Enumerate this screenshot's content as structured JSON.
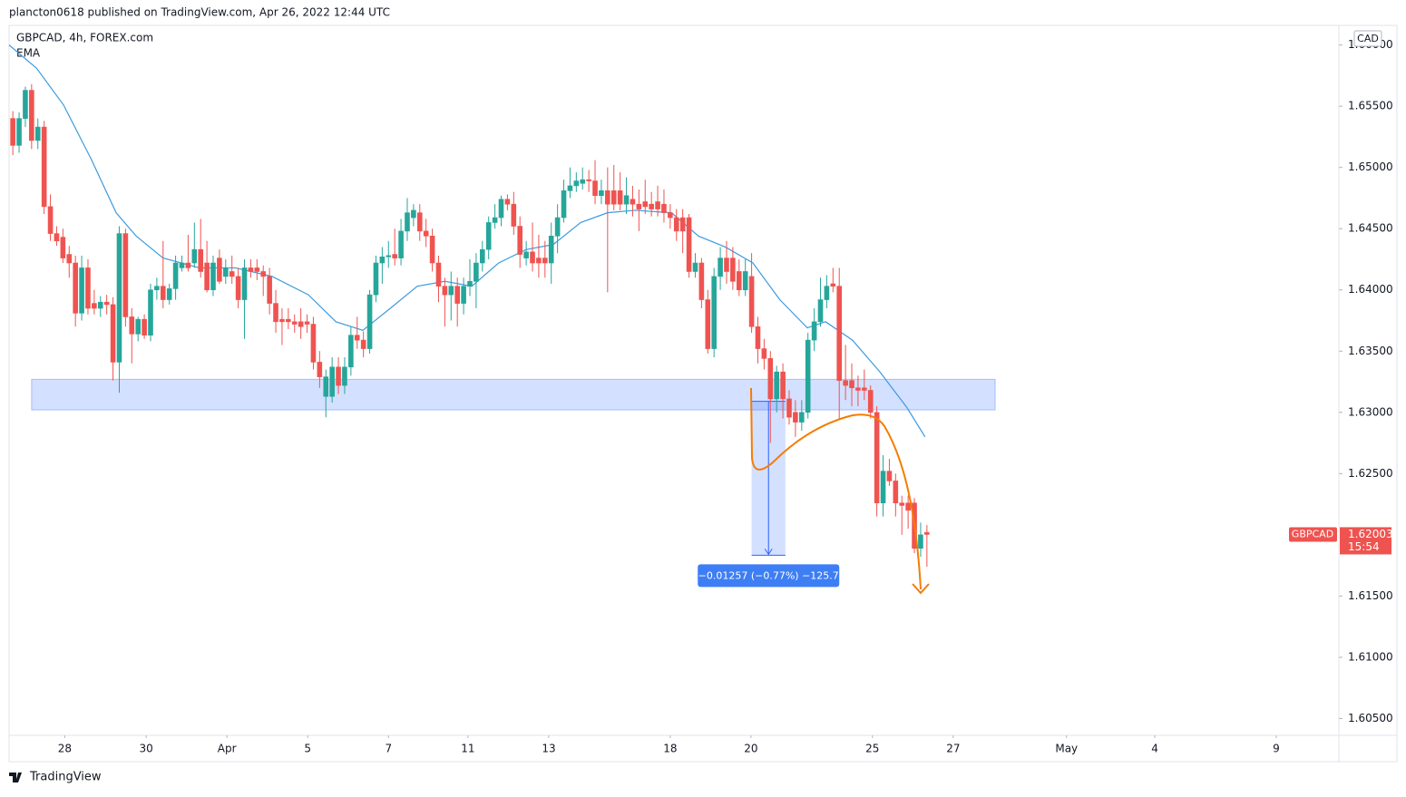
{
  "header": {
    "publisher": "plancton0618 published on TradingView.com, Apr 26, 2022 12:44 UTC"
  },
  "footer": {
    "brand": "TradingView"
  },
  "chart_data": {
    "type": "candlestick",
    "title": "GBPCAD, 4h, FOREX.com",
    "currency": "CAD",
    "up_color": "#26a69a",
    "down_color": "#ef5350",
    "ylim": [
      1.6037,
      1.6616
    ],
    "yticks": [
      {
        "value": 1.66,
        "label": "1.66000"
      },
      {
        "value": 1.655,
        "label": "1.65500"
      },
      {
        "value": 1.65,
        "label": "1.65000"
      },
      {
        "value": 1.645,
        "label": "1.64500"
      },
      {
        "value": 1.64,
        "label": "1.64000"
      },
      {
        "value": 1.635,
        "label": "1.63500"
      },
      {
        "value": 1.63,
        "label": "1.63000"
      },
      {
        "value": 1.625,
        "label": "1.62500"
      },
      {
        "value": 1.615,
        "label": "1.61500"
      },
      {
        "value": 1.61,
        "label": "1.61000"
      },
      {
        "value": 1.605,
        "label": "1.60500"
      }
    ],
    "xlim": [
      -0.6,
      211.8
    ],
    "xticks": [
      {
        "value": 8.3,
        "label": "28"
      },
      {
        "value": 21.3,
        "label": "30"
      },
      {
        "value": 34.2,
        "label": "Apr"
      },
      {
        "value": 47.1,
        "label": "5"
      },
      {
        "value": 60.0,
        "label": "7"
      },
      {
        "value": 72.7,
        "label": "11"
      },
      {
        "value": 85.6,
        "label": "13"
      },
      {
        "value": 105.0,
        "label": "18"
      },
      {
        "value": 117.9,
        "label": "20"
      },
      {
        "value": 137.3,
        "label": "25"
      },
      {
        "value": 150.2,
        "label": "27"
      },
      {
        "value": 168.3,
        "label": "May"
      },
      {
        "value": 182.4,
        "label": "4"
      },
      {
        "value": 201.8,
        "label": "9"
      }
    ],
    "ohlc": [
      [
        1.654,
        1.6546,
        1.651,
        1.6518
      ],
      [
        1.6518,
        1.6545,
        1.6512,
        1.654
      ],
      [
        1.654,
        1.6566,
        1.6533,
        1.6563
      ],
      [
        1.6563,
        1.6568,
        1.6515,
        1.6522
      ],
      [
        1.6522,
        1.654,
        1.6515,
        1.6533
      ],
      [
        1.6533,
        1.6538,
        1.6462,
        1.6468
      ],
      [
        1.6468,
        1.6478,
        1.644,
        1.6446
      ],
      [
        1.6446,
        1.6452,
        1.6436,
        1.644
      ],
      [
        1.6443,
        1.645,
        1.6422,
        1.6426
      ],
      [
        1.6429,
        1.6436,
        1.641,
        1.6422
      ],
      [
        1.6422,
        1.6428,
        1.637,
        1.6381
      ],
      [
        1.6381,
        1.6428,
        1.6375,
        1.6418
      ],
      [
        1.6418,
        1.6425,
        1.638,
        1.6385
      ],
      [
        1.6389,
        1.64,
        1.638,
        1.6385
      ],
      [
        1.6385,
        1.6395,
        1.6378,
        1.639
      ],
      [
        1.639,
        1.6396,
        1.638,
        1.6388
      ],
      [
        1.6388,
        1.6394,
        1.6326,
        1.6341
      ],
      [
        1.6341,
        1.6452,
        1.6316,
        1.6446
      ],
      [
        1.6446,
        1.645,
        1.637,
        1.6378
      ],
      [
        1.6378,
        1.6385,
        1.634,
        1.6364
      ],
      [
        1.6364,
        1.6378,
        1.6358,
        1.6376
      ],
      [
        1.6376,
        1.638,
        1.636,
        1.6363
      ],
      [
        1.6363,
        1.6405,
        1.6358,
        1.64
      ],
      [
        1.64,
        1.641,
        1.6392,
        1.6403
      ],
      [
        1.6403,
        1.644,
        1.6385,
        1.6392
      ],
      [
        1.6392,
        1.6405,
        1.6388,
        1.6401
      ],
      [
        1.6401,
        1.6428,
        1.6392,
        1.6422
      ],
      [
        1.6418,
        1.6428,
        1.6415,
        1.6422
      ],
      [
        1.6422,
        1.6445,
        1.6415,
        1.6418
      ],
      [
        1.6422,
        1.6455,
        1.6418,
        1.6433
      ],
      [
        1.6433,
        1.6458,
        1.641,
        1.6415
      ],
      [
        1.6422,
        1.644,
        1.6398,
        1.64
      ],
      [
        1.64,
        1.6428,
        1.6395,
        1.6422
      ],
      [
        1.6426,
        1.6433,
        1.6405,
        1.6407
      ],
      [
        1.6411,
        1.6425,
        1.6405,
        1.6418
      ],
      [
        1.6415,
        1.6428,
        1.6405,
        1.6411
      ],
      [
        1.6411,
        1.6418,
        1.6385,
        1.6392
      ],
      [
        1.6392,
        1.6425,
        1.636,
        1.6418
      ],
      [
        1.6418,
        1.6425,
        1.641,
        1.6415
      ],
      [
        1.6418,
        1.6425,
        1.6408,
        1.6415
      ],
      [
        1.6415,
        1.642,
        1.6395,
        1.6411
      ],
      [
        1.6411,
        1.6418,
        1.638,
        1.6389
      ],
      [
        1.6389,
        1.64,
        1.6365,
        1.6374
      ],
      [
        1.6376,
        1.6385,
        1.6355,
        1.6374
      ],
      [
        1.6376,
        1.6385,
        1.6368,
        1.6374
      ],
      [
        1.6374,
        1.638,
        1.6365,
        1.6372
      ],
      [
        1.6374,
        1.6385,
        1.636,
        1.637
      ],
      [
        1.6374,
        1.638,
        1.6365,
        1.6372
      ],
      [
        1.6372,
        1.6378,
        1.6335,
        1.6341
      ],
      [
        1.6341,
        1.635,
        1.632,
        1.6329
      ],
      [
        1.6313,
        1.6335,
        1.6296,
        1.6329
      ],
      [
        1.6313,
        1.6345,
        1.6308,
        1.6337
      ],
      [
        1.6337,
        1.6345,
        1.6315,
        1.6322
      ],
      [
        1.6322,
        1.6345,
        1.6315,
        1.6337
      ],
      [
        1.6337,
        1.637,
        1.633,
        1.6363
      ],
      [
        1.6363,
        1.6378,
        1.6352,
        1.6359
      ],
      [
        1.6359,
        1.6366,
        1.6345,
        1.6352
      ],
      [
        1.6352,
        1.64,
        1.6348,
        1.6396
      ],
      [
        1.6396,
        1.6428,
        1.639,
        1.6422
      ],
      [
        1.6422,
        1.6435,
        1.6405,
        1.6427
      ],
      [
        1.6427,
        1.644,
        1.6418,
        1.6428
      ],
      [
        1.6429,
        1.645,
        1.642,
        1.6426
      ],
      [
        1.6426,
        1.6458,
        1.642,
        1.6448
      ],
      [
        1.6448,
        1.6475,
        1.644,
        1.6463
      ],
      [
        1.6459,
        1.647,
        1.6452,
        1.6465
      ],
      [
        1.6463,
        1.647,
        1.644,
        1.6448
      ],
      [
        1.6448,
        1.6458,
        1.6435,
        1.6444
      ],
      [
        1.6444,
        1.645,
        1.6415,
        1.6422
      ],
      [
        1.6422,
        1.6428,
        1.639,
        1.6403
      ],
      [
        1.6403,
        1.641,
        1.637,
        1.6396
      ],
      [
        1.6396,
        1.6415,
        1.6375,
        1.6403
      ],
      [
        1.6403,
        1.641,
        1.637,
        1.6389
      ],
      [
        1.6389,
        1.641,
        1.638,
        1.6403
      ],
      [
        1.6403,
        1.6425,
        1.6395,
        1.6407
      ],
      [
        1.6407,
        1.643,
        1.6385,
        1.6422
      ],
      [
        1.6422,
        1.644,
        1.6415,
        1.6433
      ],
      [
        1.6433,
        1.646,
        1.6425,
        1.6455
      ],
      [
        1.6455,
        1.647,
        1.645,
        1.6459
      ],
      [
        1.6459,
        1.6477,
        1.6452,
        1.6474
      ],
      [
        1.6474,
        1.6478,
        1.6465,
        1.647
      ],
      [
        1.647,
        1.648,
        1.6445,
        1.6452
      ],
      [
        1.6452,
        1.646,
        1.6418,
        1.6429
      ],
      [
        1.6426,
        1.644,
        1.642,
        1.6431
      ],
      [
        1.6431,
        1.6455,
        1.6415,
        1.6422
      ],
      [
        1.6426,
        1.6445,
        1.641,
        1.6422
      ],
      [
        1.6426,
        1.644,
        1.641,
        1.6422
      ],
      [
        1.6422,
        1.6455,
        1.6405,
        1.6444
      ],
      [
        1.6444,
        1.647,
        1.643,
        1.6459
      ],
      [
        1.6459,
        1.649,
        1.6455,
        1.6481
      ],
      [
        1.6481,
        1.65,
        1.6475,
        1.6485
      ],
      [
        1.6485,
        1.6496,
        1.648,
        1.6489
      ],
      [
        1.6487,
        1.65,
        1.6482,
        1.649
      ],
      [
        1.649,
        1.6498,
        1.648,
        1.6489
      ],
      [
        1.6489,
        1.6506,
        1.647,
        1.6477
      ],
      [
        1.6477,
        1.649,
        1.647,
        1.6481
      ],
      [
        1.6481,
        1.65,
        1.6398,
        1.647
      ],
      [
        1.6481,
        1.6502,
        1.6465,
        1.647
      ],
      [
        1.6481,
        1.6496,
        1.6465,
        1.647
      ],
      [
        1.647,
        1.6492,
        1.6462,
        1.6477
      ],
      [
        1.6474,
        1.6485,
        1.646,
        1.647
      ],
      [
        1.647,
        1.6482,
        1.6448,
        1.6466
      ],
      [
        1.6472,
        1.649,
        1.6462,
        1.6468
      ],
      [
        1.647,
        1.648,
        1.646,
        1.6466
      ],
      [
        1.6472,
        1.6485,
        1.646,
        1.6466
      ],
      [
        1.647,
        1.6482,
        1.6455,
        1.6463
      ],
      [
        1.6463,
        1.647,
        1.645,
        1.6459
      ],
      [
        1.6459,
        1.6466,
        1.644,
        1.6448
      ],
      [
        1.6459,
        1.6466,
        1.643,
        1.6448
      ],
      [
        1.6459,
        1.6462,
        1.641,
        1.6415
      ],
      [
        1.6415,
        1.643,
        1.641,
        1.6422
      ],
      [
        1.6422,
        1.6426,
        1.6385,
        1.6392
      ],
      [
        1.6392,
        1.64,
        1.6348,
        1.6352
      ],
      [
        1.6352,
        1.6418,
        1.6345,
        1.6411
      ],
      [
        1.6411,
        1.6435,
        1.64,
        1.6426
      ],
      [
        1.6426,
        1.644,
        1.6405,
        1.6415
      ],
      [
        1.6426,
        1.6435,
        1.64,
        1.6407
      ],
      [
        1.6415,
        1.6425,
        1.6395,
        1.64
      ],
      [
        1.64,
        1.6425,
        1.6395,
        1.6415
      ],
      [
        1.6411,
        1.643,
        1.6365,
        1.637
      ],
      [
        1.637,
        1.6378,
        1.634,
        1.6352
      ],
      [
        1.6352,
        1.636,
        1.6335,
        1.6344
      ],
      [
        1.6344,
        1.635,
        1.6275,
        1.6311
      ],
      [
        1.6311,
        1.6338,
        1.63,
        1.6333
      ],
      [
        1.6333,
        1.634,
        1.6295,
        1.6311
      ],
      [
        1.6311,
        1.6318,
        1.629,
        1.6296
      ],
      [
        1.63,
        1.631,
        1.628,
        1.6292
      ],
      [
        1.6292,
        1.631,
        1.6285,
        1.63
      ],
      [
        1.63,
        1.6365,
        1.6295,
        1.6359
      ],
      [
        1.6359,
        1.6385,
        1.635,
        1.6374
      ],
      [
        1.6374,
        1.641,
        1.637,
        1.6392
      ],
      [
        1.6392,
        1.6412,
        1.6385,
        1.6403
      ],
      [
        1.6405,
        1.6418,
        1.6398,
        1.6403
      ],
      [
        1.6403,
        1.6418,
        1.6295,
        1.6326
      ],
      [
        1.6326,
        1.6355,
        1.631,
        1.6322
      ],
      [
        1.6326,
        1.634,
        1.6305,
        1.632
      ],
      [
        1.632,
        1.633,
        1.6305,
        1.6318
      ],
      [
        1.632,
        1.6335,
        1.631,
        1.6318
      ],
      [
        1.6318,
        1.6322,
        1.6295,
        1.63
      ],
      [
        1.63,
        1.6305,
        1.6215,
        1.6226
      ],
      [
        1.6226,
        1.6265,
        1.6215,
        1.6252
      ],
      [
        1.6252,
        1.6262,
        1.624,
        1.6244
      ],
      [
        1.6244,
        1.625,
        1.6215,
        1.6226
      ],
      [
        1.6226,
        1.6232,
        1.62,
        1.6224
      ],
      [
        1.6226,
        1.6232,
        1.6205,
        1.622
      ],
      [
        1.6226,
        1.623,
        1.6185,
        1.6189
      ],
      [
        1.6189,
        1.621,
        1.6182,
        1.62
      ],
      [
        1.6202,
        1.6208,
        1.6174,
        1.62003
      ]
    ],
    "ema": {
      "name": "EMA",
      "color": "#3d9be0",
      "x": [
        -0.6,
        3.8,
        8.1,
        12.5,
        16.5,
        19.7,
        24.0,
        29.8,
        35.6,
        41.4,
        47.2,
        51.6,
        55.9,
        60.3,
        64.6,
        69.0,
        73.3,
        77.6,
        82.0,
        86.3,
        90.7,
        95.0,
        99.4,
        105.2,
        109.5,
        113.8,
        118.2,
        122.5,
        126.9,
        129.8,
        134.1,
        138.5,
        142.8,
        145.7
      ],
      "values": [
        1.66,
        1.6581,
        1.6551,
        1.6507,
        1.6463,
        1.6444,
        1.6426,
        1.6418,
        1.6418,
        1.6411,
        1.6396,
        1.6374,
        1.6367,
        1.6385,
        1.6403,
        1.6407,
        1.6403,
        1.6422,
        1.6433,
        1.6437,
        1.6455,
        1.6463,
        1.6465,
        1.6463,
        1.6444,
        1.6435,
        1.6422,
        1.6392,
        1.6369,
        1.6374,
        1.6359,
        1.6333,
        1.6304,
        1.628
      ]
    },
    "zone": {
      "x": [
        3.0,
        156.9
      ],
      "y": [
        1.6327,
        1.6302
      ]
    },
    "measure": {
      "x": [
        118.0,
        123.4
      ],
      "from": 1.6309,
      "to": 1.61833,
      "label": "−0.01257 (−0.77%) −125.7"
    },
    "last_price": {
      "symbol": "GBPCAD",
      "value": 1.62003,
      "countdown": "15:54"
    }
  }
}
